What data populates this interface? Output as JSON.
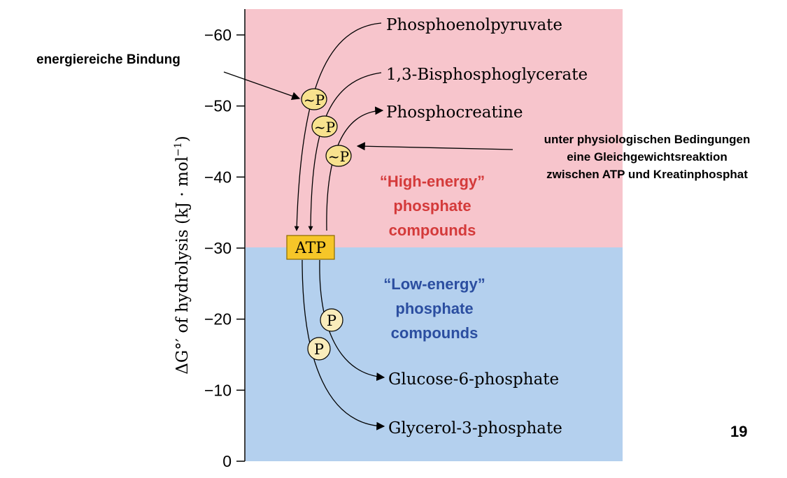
{
  "axis": {
    "label_prefix": "ΔG°′ of hydrolysis (kJ · mol",
    "label_exp": "−1",
    "label_suffix": ")",
    "ticks": [
      {
        "value": -60,
        "label": "−60"
      },
      {
        "value": -50,
        "label": "−50"
      },
      {
        "value": -40,
        "label": "−40"
      },
      {
        "value": -30,
        "label": "−30"
      },
      {
        "value": -20,
        "label": "−20"
      },
      {
        "value": -10,
        "label": "−10"
      },
      {
        "value": 0,
        "label": "0"
      }
    ]
  },
  "regions": {
    "high": {
      "line1": "“High-energy”",
      "line2": "phosphate",
      "line3": "compounds",
      "color": "#f7c5cc",
      "text_color": "#d43a3a"
    },
    "low": {
      "line1": "“Low-energy”",
      "line2": "phosphate",
      "line3": "compounds",
      "color": "#b4d0ee",
      "text_color": "#2b4ea0"
    }
  },
  "compounds": {
    "pep": "Phosphoenolpyruvate",
    "bpg": "1,3-Bisphosphoglycerate",
    "pcr": "Phosphocreatine",
    "atp": "ATP",
    "g6p": "Glucose-6-phosphate",
    "g3p": "Glycerol-3-phosphate"
  },
  "badges": {
    "high1": "~P",
    "high2": "~P",
    "high3": "~P",
    "low1": "P",
    "low2": "P"
  },
  "colors": {
    "badge_fill": "#f8e28e",
    "badge_fill_light": "#f9ecbb",
    "atp_fill": "#f6c628"
  },
  "annotations": {
    "left": "energiereiche Bindung",
    "right_line1": "unter physiologischen Bedingungen",
    "right_line2": "eine Gleichgewichtsreaktion",
    "right_line3": "zwischen ATP und Kreatinphosphat"
  },
  "page_number": "19"
}
